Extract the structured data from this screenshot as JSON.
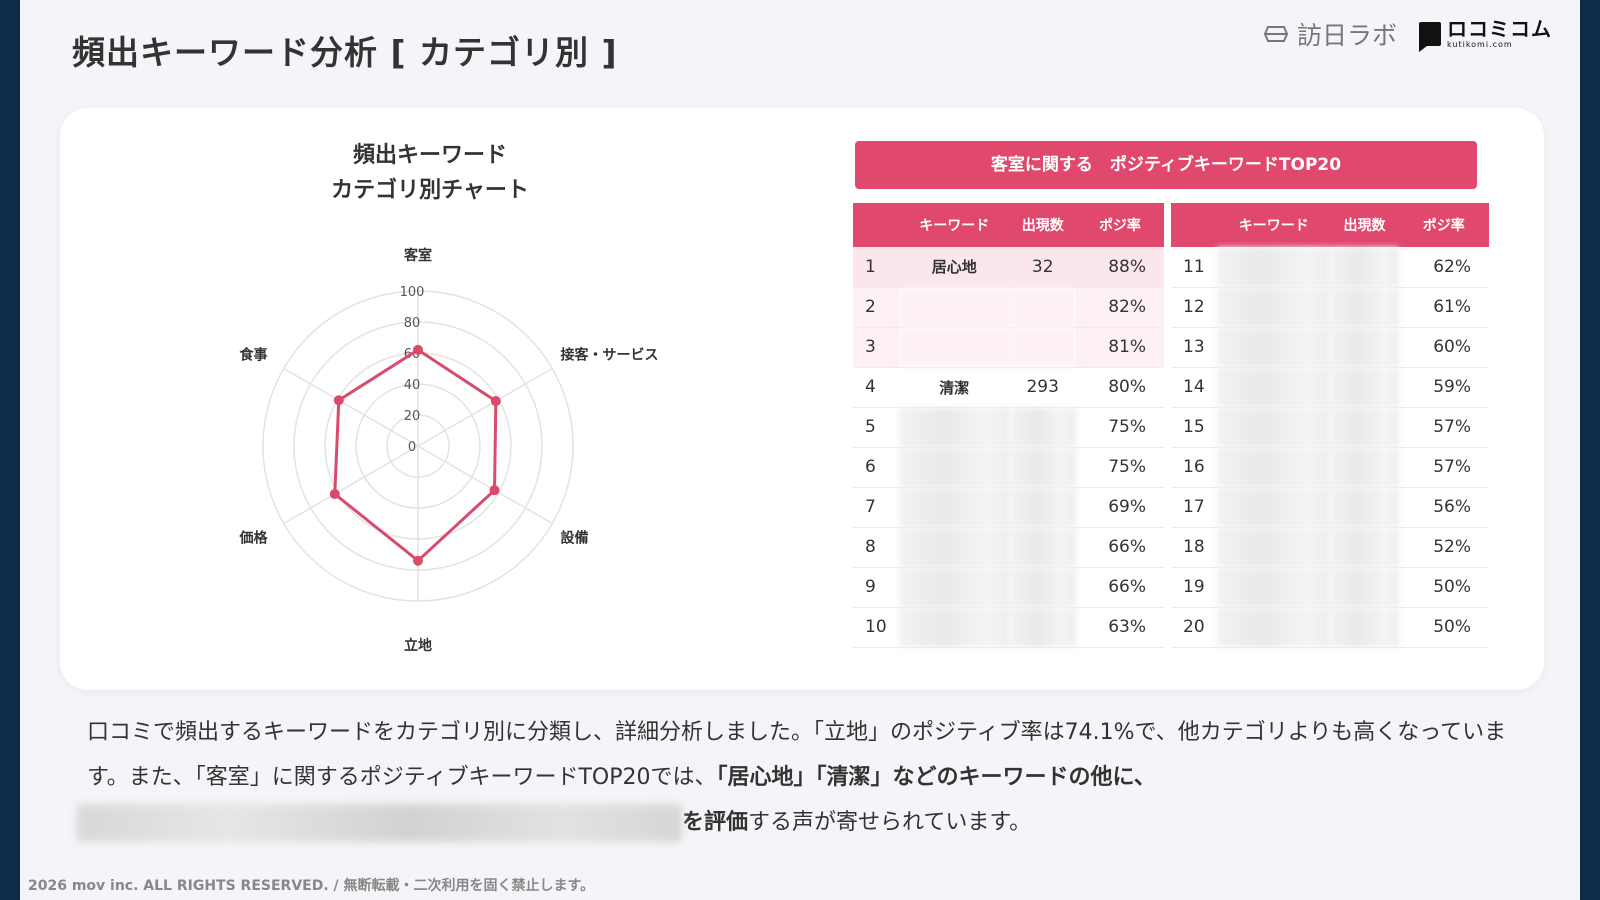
{
  "page": {
    "title": "頻出キーワード分析 [ カテゴリ別 ]",
    "logo_houjin": "訪日ラボ",
    "logo_kuchikomi": "ロコミコム",
    "logo_kuchikomi_sub": "kutikomi.com",
    "footer": "2026 mov inc. ALL RIGHTS RESERVED. / 無断転載・二次利用を固く禁止します。"
  },
  "chart_data": {
    "type": "radar",
    "title_line1": "頻出キーワード",
    "title_line2": "カテゴリ別チャート",
    "categories": [
      "客室",
      "接客・サービス",
      "設備",
      "立地",
      "価格",
      "食事"
    ],
    "values": [
      62,
      58,
      57,
      74,
      62,
      59
    ],
    "rlim": [
      0,
      100
    ],
    "r_ticks": [
      "0",
      "20",
      "40",
      "60",
      "80",
      "100"
    ],
    "series_color": "#d94a6b",
    "grid": true
  },
  "table": {
    "title": "客室に関する　ポジティブキーワードTOP20",
    "headers": {
      "keyword": "キーワード",
      "count": "出現数",
      "rate": "ポジ率"
    },
    "left_rows": [
      {
        "rank": "1",
        "keyword": "居心地",
        "count": "32",
        "rate": "88%"
      },
      {
        "rank": "2",
        "keyword": "",
        "count": "",
        "rate": "82%"
      },
      {
        "rank": "3",
        "keyword": "",
        "count": "",
        "rate": "81%"
      },
      {
        "rank": "4",
        "keyword": "清潔",
        "count": "293",
        "rate": "80%"
      },
      {
        "rank": "5",
        "keyword": "",
        "count": "",
        "rate": "75%"
      },
      {
        "rank": "6",
        "keyword": "",
        "count": "",
        "rate": "75%"
      },
      {
        "rank": "7",
        "keyword": "",
        "count": "",
        "rate": "69%"
      },
      {
        "rank": "8",
        "keyword": "",
        "count": "",
        "rate": "66%"
      },
      {
        "rank": "9",
        "keyword": "",
        "count": "",
        "rate": "66%"
      },
      {
        "rank": "10",
        "keyword": "",
        "count": "",
        "rate": "63%"
      }
    ],
    "right_rows": [
      {
        "rank": "11",
        "rate": "62%"
      },
      {
        "rank": "12",
        "rate": "61%"
      },
      {
        "rank": "13",
        "rate": "60%"
      },
      {
        "rank": "14",
        "rate": "59%"
      },
      {
        "rank": "15",
        "rate": "57%"
      },
      {
        "rank": "16",
        "rate": "57%"
      },
      {
        "rank": "17",
        "rate": "56%"
      },
      {
        "rank": "18",
        "rate": "52%"
      },
      {
        "rank": "19",
        "rate": "50%"
      },
      {
        "rank": "20",
        "rate": "50%"
      }
    ]
  },
  "description": {
    "part1": "口コミで頻出するキーワードをカテゴリ別に分類し、詳細分析しました。「立地」のポジティブ率は74.1%で、他カテゴリよりも高くなっています。また、「客室」に関するポジティブキーワードTOP20では、",
    "part2_bold": "「居心地」「清潔」などのキーワードの他に、",
    "part3_bold": "を評価",
    "part4": "する声が寄せられています。"
  }
}
